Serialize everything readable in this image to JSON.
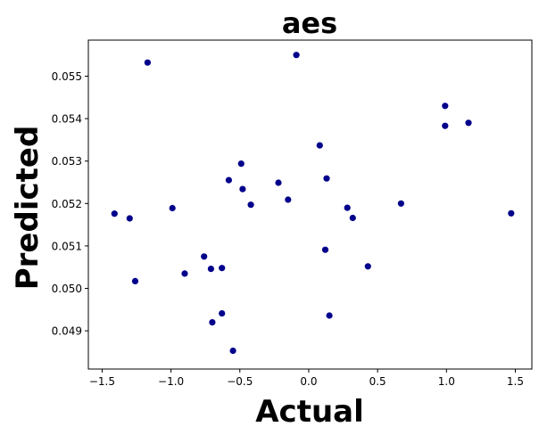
{
  "chart_data": {
    "type": "scatter",
    "title": "aes",
    "xlabel": "Actual",
    "ylabel": "Predicted",
    "xlim": [
      -1.6,
      1.62
    ],
    "ylim": [
      0.0481,
      0.05585
    ],
    "xticks": [
      -1.5,
      -1.0,
      -0.5,
      0.0,
      0.5,
      1.0,
      1.5
    ],
    "xtick_labels": [
      "−1.5",
      "−1.0",
      "−0.5",
      "0.0",
      "0.5",
      "1.0",
      "1.5"
    ],
    "yticks": [
      0.049,
      0.05,
      0.051,
      0.052,
      0.053,
      0.054,
      0.055
    ],
    "ytick_labels": [
      "0.049",
      "0.050",
      "0.051",
      "0.052",
      "0.053",
      "0.054",
      "0.055"
    ],
    "grid": false,
    "marker_color": "#00008b",
    "points": [
      {
        "x": -1.41,
        "y": 0.05176
      },
      {
        "x": -1.3,
        "y": 0.05165
      },
      {
        "x": -1.26,
        "y": 0.05017
      },
      {
        "x": -1.17,
        "y": 0.05532
      },
      {
        "x": -0.99,
        "y": 0.05189
      },
      {
        "x": -0.9,
        "y": 0.05035
      },
      {
        "x": -0.76,
        "y": 0.05075
      },
      {
        "x": -0.71,
        "y": 0.05046
      },
      {
        "x": -0.7,
        "y": 0.0492
      },
      {
        "x": -0.63,
        "y": 0.05048
      },
      {
        "x": -0.63,
        "y": 0.04941
      },
      {
        "x": -0.58,
        "y": 0.05255
      },
      {
        "x": -0.55,
        "y": 0.04853
      },
      {
        "x": -0.49,
        "y": 0.05294
      },
      {
        "x": -0.48,
        "y": 0.05234
      },
      {
        "x": -0.42,
        "y": 0.05197
      },
      {
        "x": -0.22,
        "y": 0.05249
      },
      {
        "x": -0.15,
        "y": 0.05209
      },
      {
        "x": -0.09,
        "y": 0.0555
      },
      {
        "x": 0.08,
        "y": 0.05337
      },
      {
        "x": 0.12,
        "y": 0.05091
      },
      {
        "x": 0.13,
        "y": 0.05259
      },
      {
        "x": 0.15,
        "y": 0.04936
      },
      {
        "x": 0.28,
        "y": 0.0519
      },
      {
        "x": 0.32,
        "y": 0.05166
      },
      {
        "x": 0.43,
        "y": 0.05052
      },
      {
        "x": 0.67,
        "y": 0.052
      },
      {
        "x": 0.99,
        "y": 0.0543
      },
      {
        "x": 0.99,
        "y": 0.05383
      },
      {
        "x": 1.16,
        "y": 0.0539
      },
      {
        "x": 1.47,
        "y": 0.05177
      }
    ]
  }
}
